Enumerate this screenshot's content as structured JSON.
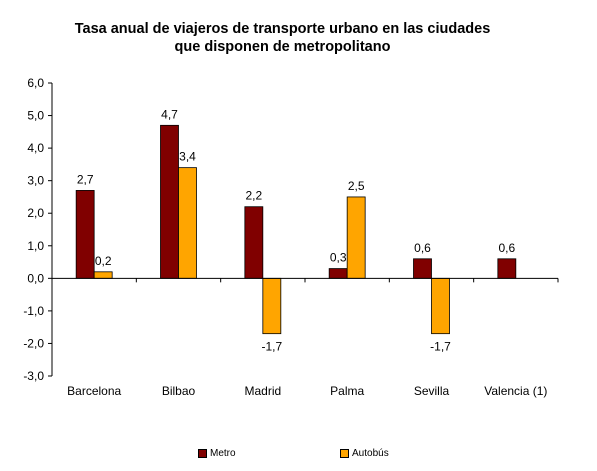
{
  "chart_data": {
    "type": "bar",
    "title_line1": "Tasa anual de viajeros de transporte urbano en las ciudades",
    "title_line2": "que disponen de metropolitano",
    "categories": [
      "Barcelona",
      "Bilbao",
      "Madrid",
      "Palma",
      "Sevilla",
      "Valencia (1)"
    ],
    "series": [
      {
        "name": "Metro",
        "color": "#800000",
        "values": [
          2.7,
          4.7,
          2.2,
          0.3,
          0.6,
          0.6
        ],
        "labels": [
          "2,7",
          "4,7",
          "2,2",
          "0,3",
          "0,6",
          "0,6"
        ]
      },
      {
        "name": "Autobús",
        "color": "#ffa500",
        "values": [
          0.2,
          3.4,
          -1.7,
          2.5,
          -1.7,
          null
        ],
        "labels": [
          "0,2",
          "3,4",
          "-1,7",
          "2,5",
          "-1,7",
          null
        ]
      }
    ],
    "yticks": [
      "6,0",
      "5,0",
      "4,0",
      "3,0",
      "2,0",
      "1,0",
      "0,0",
      "-1,0",
      "-2,0",
      "-3,0"
    ],
    "ylim": [
      -3,
      6
    ],
    "grid": false,
    "legend": "bottom"
  }
}
